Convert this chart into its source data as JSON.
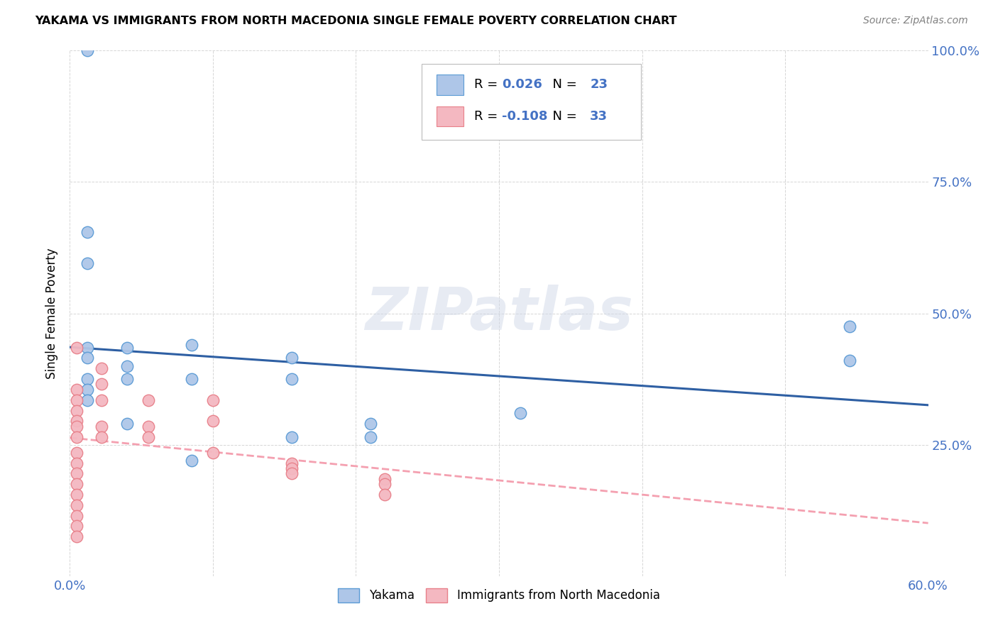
{
  "title": "YAKAMA VS IMMIGRANTS FROM NORTH MACEDONIA SINGLE FEMALE POVERTY CORRELATION CHART",
  "source": "Source: ZipAtlas.com",
  "ylabel": "Single Female Poverty",
  "xlim": [
    0.0,
    0.6
  ],
  "ylim": [
    0.0,
    1.0
  ],
  "ytick_vals": [
    0.0,
    0.25,
    0.5,
    0.75,
    1.0
  ],
  "ytick_labels": [
    "",
    "25.0%",
    "50.0%",
    "75.0%",
    "100.0%"
  ],
  "xtick_vals": [
    0.0,
    0.1,
    0.2,
    0.3,
    0.4,
    0.5,
    0.6
  ],
  "xtick_labels": [
    "0.0%",
    "",
    "",
    "",
    "",
    "",
    "60.0%"
  ],
  "yakama_R": "0.026",
  "yakama_N": "23",
  "macedonia_R": "-0.108",
  "macedonia_N": "33",
  "yakama_color": "#aec6e8",
  "yakama_edge": "#5b9bd5",
  "macedonia_color": "#f4b8c1",
  "macedonia_edge": "#e8808a",
  "trend_yakama_color": "#2e5fa3",
  "trend_macedonia_color": "#f4a0b0",
  "watermark": "ZIPatlas",
  "yakama_x": [
    0.012,
    0.012,
    0.012,
    0.012,
    0.012,
    0.012,
    0.012,
    0.012,
    0.04,
    0.04,
    0.04,
    0.04,
    0.085,
    0.085,
    0.085,
    0.155,
    0.155,
    0.155,
    0.21,
    0.21,
    0.315,
    0.545,
    0.545
  ],
  "yakama_y": [
    1.0,
    0.655,
    0.595,
    0.435,
    0.415,
    0.375,
    0.355,
    0.335,
    0.435,
    0.4,
    0.375,
    0.29,
    0.44,
    0.375,
    0.22,
    0.265,
    0.375,
    0.415,
    0.265,
    0.29,
    0.31,
    0.475,
    0.41
  ],
  "macedonia_x": [
    0.005,
    0.005,
    0.005,
    0.005,
    0.005,
    0.005,
    0.005,
    0.005,
    0.005,
    0.005,
    0.005,
    0.005,
    0.005,
    0.005,
    0.005,
    0.005,
    0.022,
    0.022,
    0.022,
    0.022,
    0.022,
    0.055,
    0.055,
    0.055,
    0.1,
    0.1,
    0.1,
    0.155,
    0.155,
    0.155,
    0.22,
    0.22,
    0.22
  ],
  "macedonia_y": [
    0.435,
    0.355,
    0.335,
    0.315,
    0.295,
    0.285,
    0.265,
    0.235,
    0.215,
    0.195,
    0.175,
    0.155,
    0.135,
    0.115,
    0.095,
    0.075,
    0.395,
    0.365,
    0.335,
    0.285,
    0.265,
    0.335,
    0.285,
    0.265,
    0.335,
    0.295,
    0.235,
    0.215,
    0.205,
    0.195,
    0.185,
    0.175,
    0.155
  ]
}
